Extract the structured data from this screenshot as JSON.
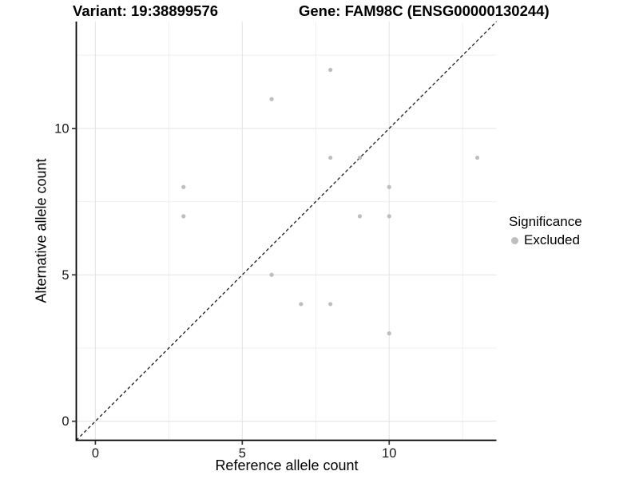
{
  "header": {
    "variant_title": "Variant: 19:38899576",
    "gene_title": "Gene: FAM98C (ENSG00000130244)"
  },
  "legend": {
    "title": "Significance",
    "items": [
      {
        "label": "Excluded",
        "color": "#bebebe"
      }
    ]
  },
  "chart_data": {
    "type": "scatter",
    "title": "Variant: 19:38899576 / Gene: FAM98C (ENSG00000130244)",
    "xlabel": "Reference allele count",
    "ylabel": "Alternative allele count",
    "xlim": [
      -0.65,
      13.65
    ],
    "ylim": [
      -0.65,
      13.65
    ],
    "x_ticks": [
      0,
      5,
      10
    ],
    "y_ticks": [
      0,
      5,
      10
    ],
    "x_minor_ticks": [
      2.5,
      7.5,
      12.5
    ],
    "y_minor_ticks": [
      2.5,
      7.5,
      12.5
    ],
    "grid": true,
    "legend_position": "right",
    "reference_line": {
      "type": "identity",
      "slope": 1,
      "intercept": 0,
      "style": "dashed",
      "color": "#1a1a1a"
    },
    "series": [
      {
        "name": "Excluded",
        "color": "#bebebe",
        "points": [
          [
            3,
            7
          ],
          [
            3,
            8
          ],
          [
            6,
            5
          ],
          [
            6,
            11
          ],
          [
            7,
            4
          ],
          [
            8,
            4
          ],
          [
            8,
            9
          ],
          [
            8,
            12
          ],
          [
            9,
            7
          ],
          [
            9,
            9
          ],
          [
            10,
            3
          ],
          [
            10,
            7
          ],
          [
            10,
            8
          ],
          [
            13,
            9
          ]
        ]
      }
    ],
    "colors": {
      "grid_major": "#e3e3e3",
      "grid_minor": "#efefef",
      "axis_line": "#000000",
      "tick_mark": "#333333",
      "tick_label": "#1a1a1a"
    }
  }
}
